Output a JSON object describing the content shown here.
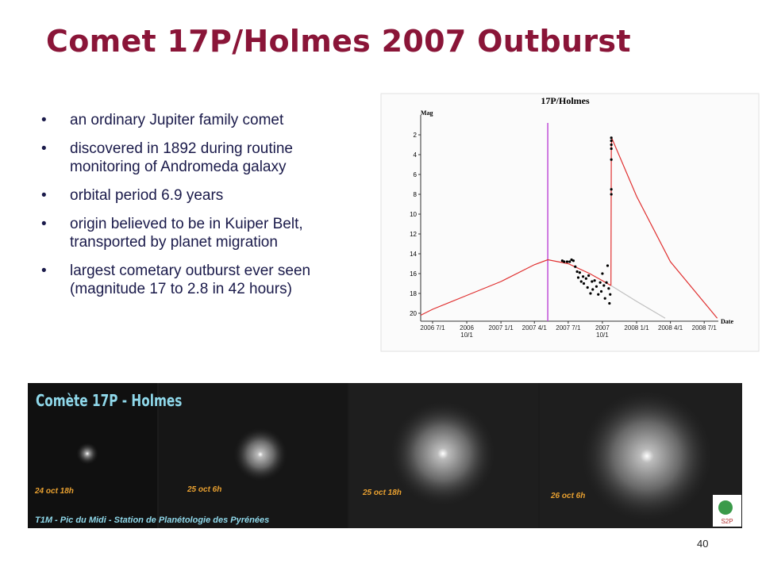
{
  "title": "Comet 17P/Holmes 2007 Outburst",
  "bullets": [
    "an ordinary Jupiter family comet",
    "discovered in 1892 during routine monitoring of Andromeda galaxy",
    "orbital period 6.9 years",
    "origin believed to be in Kuiper Belt, transported by planet migration",
    "largest cometary outburst ever seen (magnitude 17 to 2.8 in 42 hours)"
  ],
  "chart_data": {
    "type": "line",
    "title": "17P/Holmes",
    "y_label": "Mag",
    "x_label": "Date",
    "xlim": [
      "2006-05-30",
      "2008-08-08"
    ],
    "ylim": [
      20.8,
      0
    ],
    "yticks": [
      2,
      4,
      6,
      8,
      10,
      12,
      14,
      16,
      18,
      20
    ],
    "xticks": [
      {
        "value": "2006-07-01",
        "label": "2006 7/1"
      },
      {
        "value": "2006-10-01",
        "label": "2006 10/1"
      },
      {
        "value": "2007-01-01",
        "label": "2007 1/1"
      },
      {
        "value": "2007-04-01",
        "label": "2007 4/1"
      },
      {
        "value": "2007-07-01",
        "label": "2007 7/1"
      },
      {
        "value": "2007-10-01",
        "label": "2007 10/1"
      },
      {
        "value": "2008-01-01",
        "label": "2008 1/1"
      },
      {
        "value": "2008-04-01",
        "label": "2008 4/1"
      },
      {
        "value": "2008-07-01",
        "label": "2008 7/1"
      }
    ],
    "marker_line": {
      "x": "2007-05-07",
      "color": "#c050d8"
    },
    "series": [
      {
        "color": "#e03030",
        "mode": "line",
        "x": [
          "2006-05-30",
          "2006-07-01",
          "2006-10-01",
          "2007-01-01",
          "2007-04-01",
          "2007-05-07",
          "2007-07-01",
          "2007-08-28",
          "2007-10-24",
          "2007-10-25",
          "2007-10-27",
          "2008-01-01",
          "2008-04-01",
          "2008-08-05"
        ],
        "values": [
          20.2,
          19.6,
          18.2,
          16.8,
          15.1,
          14.6,
          15.0,
          16.0,
          17.2,
          3.0,
          2.4,
          8.2,
          14.8,
          20.5
        ]
      },
      {
        "color": "#c0c0c0",
        "mode": "line",
        "x": [
          "2007-10-24",
          "2008-01-01",
          "2008-03-18"
        ],
        "values": [
          17.2,
          18.8,
          20.5
        ]
      },
      {
        "color": "#000000",
        "mode": "markers",
        "x": [
          "2007-06-15",
          "2007-06-20",
          "2007-06-28",
          "2007-07-05",
          "2007-07-10",
          "2007-07-15",
          "2007-07-20",
          "2007-07-25",
          "2007-07-28",
          "2007-08-01",
          "2007-08-05",
          "2007-08-10",
          "2007-08-12",
          "2007-08-18",
          "2007-08-22",
          "2007-08-25",
          "2007-08-30",
          "2007-09-03",
          "2007-09-05",
          "2007-09-10",
          "2007-09-15",
          "2007-09-20",
          "2007-09-25",
          "2007-09-28",
          "2007-10-01",
          "2007-10-05",
          "2007-10-08",
          "2007-10-12",
          "2007-10-15",
          "2007-10-18",
          "2007-10-20",
          "2007-10-22",
          "2007-10-25",
          "2007-10-25",
          "2007-10-25",
          "2007-10-25",
          "2007-10-25",
          "2007-10-25",
          "2007-10-25"
        ],
        "values": [
          14.7,
          14.8,
          14.8,
          14.8,
          14.6,
          14.7,
          15.3,
          15.8,
          16.4,
          15.9,
          16.8,
          16.3,
          17.0,
          16.5,
          17.4,
          16.2,
          18.0,
          16.8,
          17.6,
          16.7,
          17.3,
          18.1,
          16.9,
          17.8,
          16.0,
          17.2,
          18.5,
          16.9,
          15.2,
          17.5,
          19.0,
          18.1,
          2.3,
          2.6,
          3.0,
          3.4,
          4.5,
          7.5,
          8.0
        ]
      }
    ]
  },
  "photo": {
    "title": "Comète 17P - Holmes",
    "captions": [
      "24 oct 18h",
      "25 oct 6h",
      "25 oct 18h",
      "26 oct 6h"
    ],
    "credit": "T1M - Pic du Midi - Station de Planétologie des Pyrénées",
    "logo": "S2P"
  },
  "page_number": "40"
}
